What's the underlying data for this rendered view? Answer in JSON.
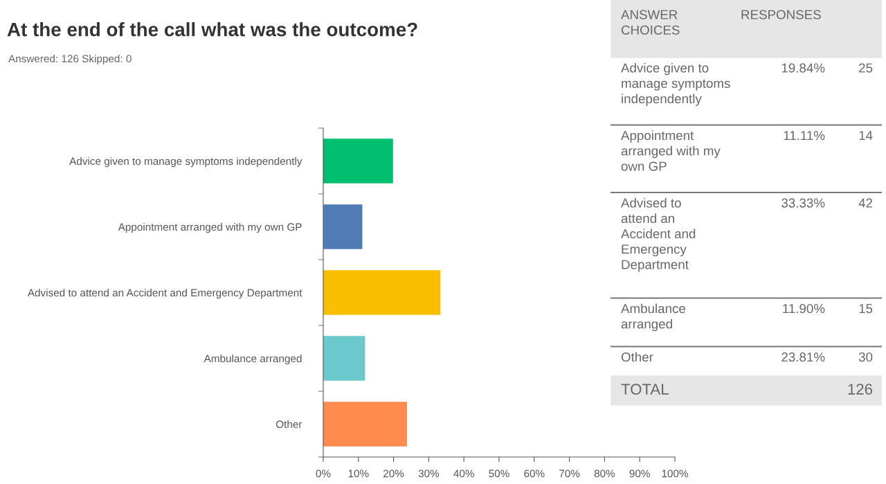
{
  "chart_data": {
    "type": "bar",
    "orientation": "horizontal",
    "title": "At the end of the call what was the outcome?",
    "subtitle": "Answered: 126 Skipped: 0",
    "categories": [
      "Advice given to manage symptoms independently",
      "Appointment arranged with my own GP",
      "Advised to attend an Accident and Emergency Department",
      "Ambulance arranged",
      "Other"
    ],
    "values": [
      19.84,
      11.11,
      33.33,
      11.9,
      23.81
    ],
    "colors": [
      "#00bf6f",
      "#507cb6",
      "#f9be00",
      "#6bc8cd",
      "#ff8b4f"
    ],
    "annotations": [
      "ANSWER CHOICES",
      "RESPONSES",
      "19.84%",
      "25",
      "11.11%",
      "14",
      "33.33%",
      "42",
      "11.90%",
      "15",
      "23.81%",
      "30",
      "TOTAL",
      "126"
    ],
    "xlim": [
      0,
      100
    ],
    "xticks": [
      {
        "value": 0,
        "label": "0%"
      },
      {
        "value": 10,
        "label": "10%"
      },
      {
        "value": 20,
        "label": "20%"
      },
      {
        "value": 30,
        "label": "30%"
      },
      {
        "value": 40,
        "label": "40%"
      },
      {
        "value": 50,
        "label": "50%"
      },
      {
        "value": 60,
        "label": "60%"
      },
      {
        "value": 70,
        "label": "70%"
      },
      {
        "value": 80,
        "label": "80%"
      },
      {
        "value": 90,
        "label": "90%"
      },
      {
        "value": 100,
        "label": "100%"
      }
    ],
    "grid": false,
    "legend": false
  }
}
